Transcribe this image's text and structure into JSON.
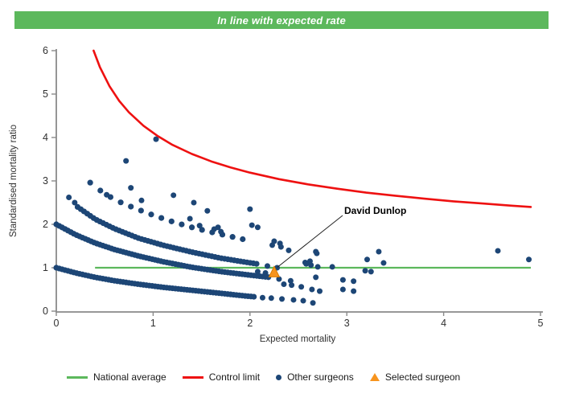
{
  "banner": {
    "text": "In line with expected rate",
    "bg_color": "#5cb85c",
    "text_color": "#ffffff"
  },
  "annotation": {
    "text": "David Dunlop"
  },
  "legend": [
    {
      "label": "National average",
      "type": "line",
      "color": "#5cb85c"
    },
    {
      "label": "Control limit",
      "type": "line",
      "color": "#ee1111"
    },
    {
      "label": "Other surgeons",
      "type": "dot",
      "color": "#1d4676"
    },
    {
      "label": "Selected surgeon",
      "type": "triangle",
      "color": "#f7941e"
    }
  ],
  "chart_data": {
    "type": "scatter",
    "title": "In line with expected rate",
    "xlabel": "Expected mortality",
    "ylabel": "Standardised mortality ratio",
    "xlim": [
      0,
      5
    ],
    "ylim": [
      0,
      6
    ],
    "x_ticks": [
      0,
      1,
      2,
      3,
      4,
      5
    ],
    "y_ticks": [
      0,
      1,
      2,
      3,
      4,
      5,
      6
    ],
    "grid": false,
    "legend_position": "bottom",
    "axis_color": "#8a8a8a",
    "tick_label_color": "#303030",
    "national_average": {
      "label": "National average",
      "color": "#5cb85c",
      "y": 1.0,
      "x_start": 0.4,
      "x_end": 4.9
    },
    "control_limit": {
      "label": "Control limit",
      "color": "#ee1111",
      "points": [
        [
          0.385,
          6.0
        ],
        [
          0.45,
          5.62
        ],
        [
          0.55,
          5.18
        ],
        [
          0.65,
          4.84
        ],
        [
          0.75,
          4.58
        ],
        [
          0.9,
          4.27
        ],
        [
          1.05,
          4.03
        ],
        [
          1.2,
          3.83
        ],
        [
          1.4,
          3.62
        ],
        [
          1.6,
          3.45
        ],
        [
          1.8,
          3.31
        ],
        [
          2.0,
          3.19
        ],
        [
          2.3,
          3.04
        ],
        [
          2.6,
          2.92
        ],
        [
          2.9,
          2.82
        ],
        [
          3.2,
          2.73
        ],
        [
          3.5,
          2.66
        ],
        [
          3.8,
          2.59
        ],
        [
          4.1,
          2.53
        ],
        [
          4.4,
          2.48
        ],
        [
          4.7,
          2.43
        ],
        [
          4.9,
          2.4
        ]
      ]
    },
    "other_surgeons": {
      "label": "Other surgeons",
      "color": "#1d4676",
      "dense_bands": [
        {
          "step": 0.03,
          "points": [
            [
              0,
              1.0
            ],
            [
              0.2,
              0.88
            ],
            [
              0.4,
              0.78
            ],
            [
              0.6,
              0.7
            ],
            [
              0.85,
              0.62
            ],
            [
              1.1,
              0.55
            ],
            [
              1.4,
              0.48
            ],
            [
              1.7,
              0.41
            ],
            [
              1.95,
              0.35
            ],
            [
              2.05,
              0.33
            ]
          ]
        },
        {
          "step": 0.03,
          "points": [
            [
              0,
              2.0
            ],
            [
              0.2,
              1.76
            ],
            [
              0.4,
              1.57
            ],
            [
              0.6,
              1.42
            ],
            [
              0.85,
              1.27
            ],
            [
              1.1,
              1.14
            ],
            [
              1.4,
              1.01
            ],
            [
              1.7,
              0.91
            ],
            [
              2.0,
              0.83
            ],
            [
              2.2,
              0.78
            ]
          ]
        },
        {
          "step": 0.033,
          "points": [
            [
              0.22,
              2.4
            ],
            [
              0.4,
              2.12
            ],
            [
              0.6,
              1.9
            ],
            [
              0.85,
              1.68
            ],
            [
              1.1,
              1.52
            ],
            [
              1.4,
              1.36
            ],
            [
              1.7,
              1.22
            ],
            [
              1.95,
              1.13
            ],
            [
              2.1,
              1.08
            ]
          ]
        },
        {
          "step": 0.105,
          "points": [
            [
              0.35,
              2.96
            ],
            [
              0.5,
              2.7
            ],
            [
              0.65,
              2.52
            ],
            [
              0.8,
              2.38
            ],
            [
              1.0,
              2.21
            ],
            [
              1.2,
              2.06
            ],
            [
              1.4,
              1.93
            ],
            [
              1.6,
              1.82
            ],
            [
              1.8,
              1.72
            ],
            [
              2.0,
              1.62
            ]
          ]
        }
      ],
      "scatter": [
        [
          0.13,
          2.62
        ],
        [
          0.19,
          2.5
        ],
        [
          0.52,
          2.68
        ],
        [
          0.72,
          3.46
        ],
        [
          0.77,
          2.84
        ],
        [
          0.88,
          2.55
        ],
        [
          1.03,
          3.96
        ],
        [
          1.21,
          2.67
        ],
        [
          1.38,
          2.13
        ],
        [
          1.42,
          2.5
        ],
        [
          1.48,
          1.97
        ],
        [
          1.56,
          2.31
        ],
        [
          1.63,
          1.89
        ],
        [
          1.67,
          1.93
        ],
        [
          1.7,
          1.83
        ],
        [
          2.0,
          2.35
        ],
        [
          2.02,
          1.98
        ],
        [
          2.08,
          1.93
        ],
        [
          2.23,
          1.52
        ],
        [
          2.25,
          1.61
        ],
        [
          2.31,
          1.56
        ],
        [
          2.32,
          1.48
        ],
        [
          2.4,
          1.4
        ],
        [
          2.57,
          1.12
        ],
        [
          2.62,
          1.15
        ],
        [
          2.68,
          1.37
        ],
        [
          2.69,
          1.33
        ],
        [
          2.58,
          1.09
        ],
        [
          2.63,
          1.06
        ],
        [
          2.7,
          1.02
        ],
        [
          2.85,
          1.02
        ],
        [
          3.19,
          0.93
        ],
        [
          3.25,
          0.91
        ],
        [
          3.21,
          1.19
        ],
        [
          3.33,
          1.37
        ],
        [
          3.38,
          1.11
        ],
        [
          2.68,
          0.78
        ],
        [
          2.96,
          0.72
        ],
        [
          3.07,
          0.69
        ],
        [
          2.96,
          0.5
        ],
        [
          3.07,
          0.46
        ],
        [
          2.64,
          0.5
        ],
        [
          2.72,
          0.46
        ],
        [
          2.65,
          0.19
        ],
        [
          2.53,
          0.56
        ],
        [
          2.35,
          0.62
        ],
        [
          2.43,
          0.6
        ],
        [
          2.13,
          0.31
        ],
        [
          2.22,
          0.3
        ],
        [
          2.33,
          0.28
        ],
        [
          2.45,
          0.26
        ],
        [
          2.55,
          0.24
        ],
        [
          2.3,
          0.74
        ],
        [
          2.42,
          0.7
        ],
        [
          2.18,
          1.04
        ],
        [
          2.28,
          1.0
        ],
        [
          2.08,
          0.91
        ],
        [
          2.16,
          0.88
        ],
        [
          4.56,
          1.39
        ],
        [
          4.88,
          1.19
        ]
      ]
    },
    "selected_surgeon": {
      "label": "Selected surgeon",
      "name": "David Dunlop",
      "color": "#f7941e",
      "edge_color": "#d97b00",
      "x": 2.25,
      "y": 0.9
    }
  }
}
